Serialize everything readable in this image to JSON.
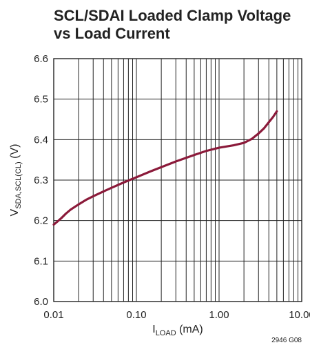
{
  "chart_data": {
    "type": "line",
    "title_lines": [
      "SCL/SDAI Loaded Clamp Voltage",
      "vs Load Current"
    ],
    "xscale": "log",
    "xlim": [
      0.01,
      10
    ],
    "ylim": [
      6.0,
      6.6
    ],
    "x_ticks": [
      "0.01",
      "0.10",
      "1.00",
      "10.00"
    ],
    "y_ticks": [
      "6.0",
      "6.1",
      "6.2",
      "6.3",
      "6.4",
      "6.5",
      "6.6"
    ],
    "xlabel": {
      "main": "I",
      "sub": "LOAD",
      "unit": " (mA)"
    },
    "ylabel": {
      "main": "V",
      "sub": "SDA,SCL(CL)",
      "unit": " (V)"
    },
    "grid": true,
    "series": [
      {
        "color": "#8b1a3a",
        "x": [
          0.01,
          0.011,
          0.0125,
          0.014,
          0.016,
          0.02,
          0.025,
          0.03,
          0.04,
          0.05,
          0.07,
          0.1,
          0.15,
          0.2,
          0.3,
          0.5,
          0.7,
          1.0,
          1.5,
          2.0,
          2.5,
          3.0,
          3.5,
          4.0,
          4.5,
          5.0
        ],
        "y": [
          6.19,
          6.197,
          6.207,
          6.217,
          6.227,
          6.24,
          6.252,
          6.26,
          6.272,
          6.281,
          6.294,
          6.307,
          6.322,
          6.332,
          6.346,
          6.362,
          6.372,
          6.38,
          6.386,
          6.392,
          6.402,
          6.415,
          6.428,
          6.443,
          6.456,
          6.47
        ]
      }
    ]
  },
  "figure_code": "2946 G08"
}
